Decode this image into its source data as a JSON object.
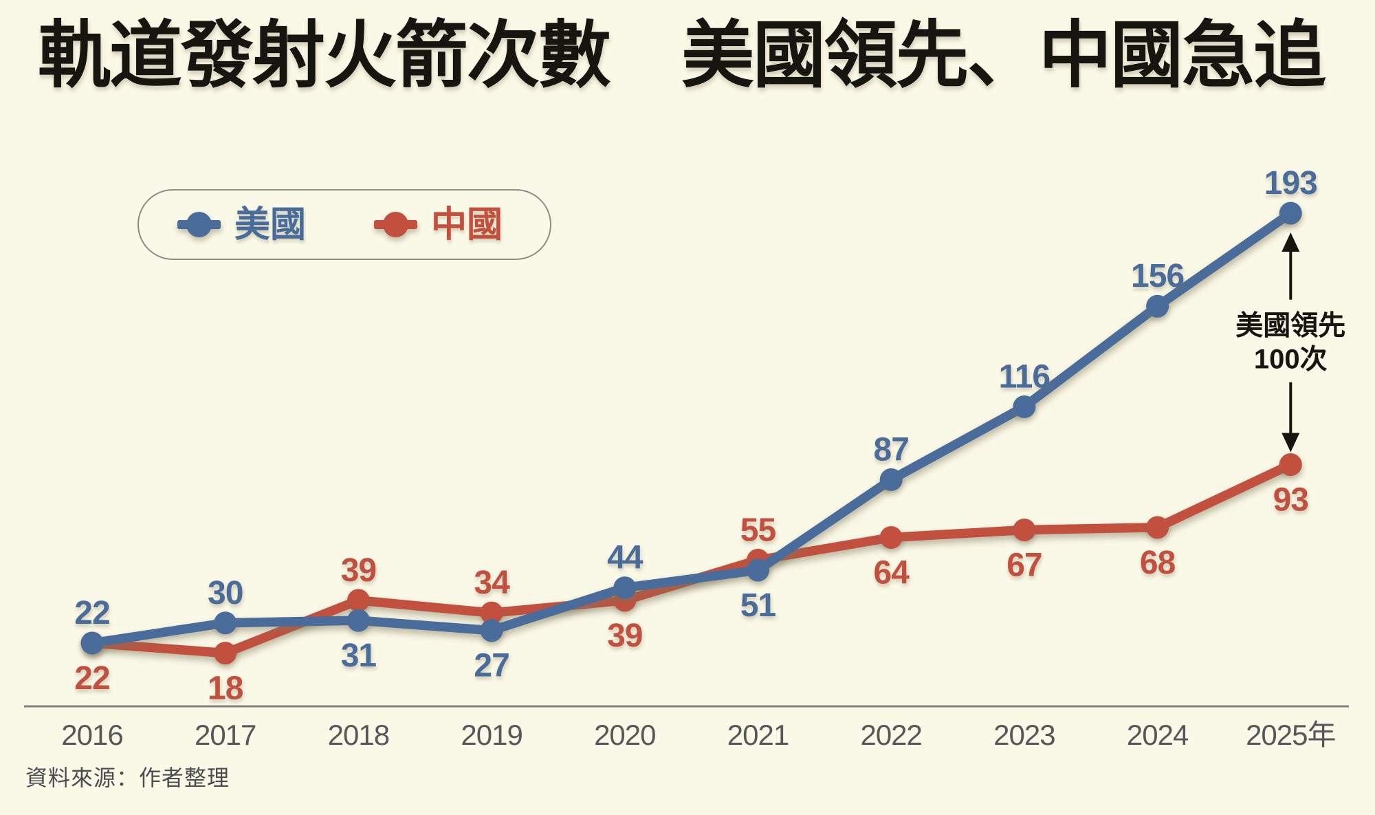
{
  "title": "軌道發射火箭次數　美國領先、中國急追",
  "colors": {
    "background": "#FAF8E6",
    "ink": "#17150F",
    "us_blue": "#4A6C9B",
    "china_red": "#C1503F",
    "axis_gray": "#7F8183",
    "tick_gray": "#56575A",
    "source_gray": "#4B4C4E",
    "legend_border": "#8D8C86"
  },
  "legend": {
    "items": [
      {
        "label": "美國",
        "color": "#4A6C9B",
        "marker": "line-dot-marker-icon"
      },
      {
        "label": "中國",
        "color": "#C1503F",
        "marker": "line-dot-marker-icon"
      }
    ]
  },
  "chart_data": {
    "type": "line",
    "title": "軌道發射火箭次數　美國領先、中國急追",
    "categories": [
      "2016",
      "2017",
      "2018",
      "2019",
      "2020",
      "2021",
      "2022",
      "2023",
      "2024",
      "2025年"
    ],
    "series": [
      {
        "name": "美國",
        "color": "#4A6C9B",
        "values": [
          22,
          30,
          31,
          27,
          44,
          51,
          87,
          116,
          156,
          193
        ],
        "label_positions": [
          "above",
          "above",
          "below",
          "below",
          "above",
          "below",
          "above",
          "above",
          "above",
          "above"
        ]
      },
      {
        "name": "中國",
        "color": "#C1503F",
        "values": [
          22,
          18,
          39,
          34,
          39,
          55,
          64,
          67,
          68,
          93
        ],
        "label_positions": [
          "below",
          "below",
          "above",
          "above",
          "below",
          "above",
          "below",
          "below",
          "below",
          "below"
        ]
      }
    ],
    "annotation": {
      "lines": [
        "美國領先",
        "100次"
      ],
      "between_series": [
        "美國",
        "中國"
      ],
      "at_category": "2025年",
      "gap_value": 100
    },
    "xlabel": "",
    "ylabel": "",
    "ylim": [
      0,
      200
    ],
    "grid": false,
    "legend_position": "top-left",
    "source": "資料來源：作者整理"
  }
}
